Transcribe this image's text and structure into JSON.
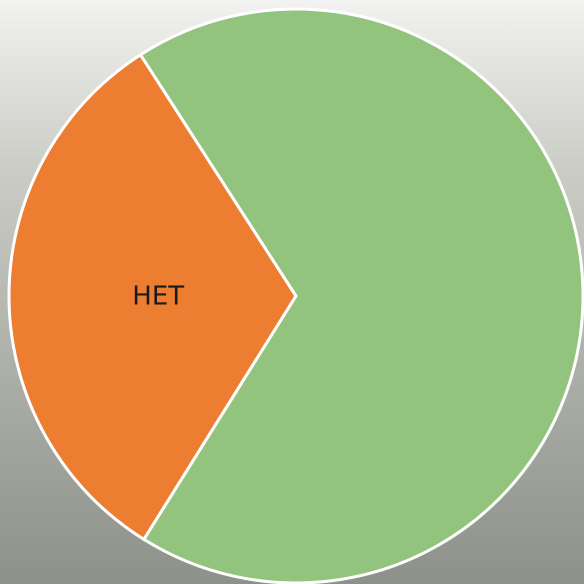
{
  "chart_data": {
    "type": "pie",
    "categories": [
      "HET",
      null
    ],
    "values": [
      32,
      68
    ],
    "colors": [
      "#ed7d31",
      "#93c47d"
    ]
  }
}
